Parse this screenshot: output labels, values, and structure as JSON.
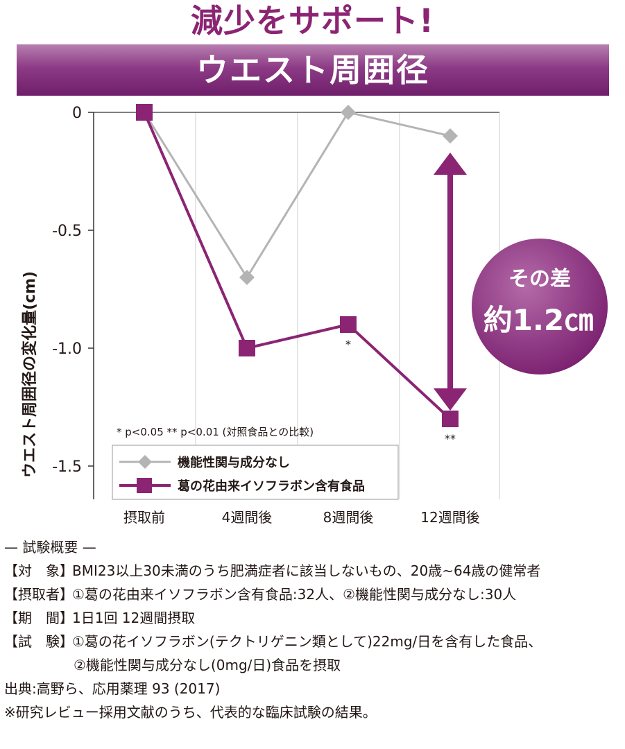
{
  "headline": "減少をサポート!",
  "banner": "ウエスト周囲径",
  "chart_data": {
    "type": "line",
    "title": "",
    "xlabel": "",
    "ylabel": "ウエスト周囲径の変化量(cm)",
    "categories": [
      "摂取前",
      "4週間後",
      "8週間後",
      "12週間後"
    ],
    "ylim": [
      -1.6,
      0
    ],
    "yticks": [
      0,
      -0.5,
      -1.0,
      -1.5
    ],
    "ytick_labels": [
      "0",
      "-0.5",
      "-1.0",
      "-1.5"
    ],
    "series": [
      {
        "name": "機能性関与成分なし",
        "values": [
          0,
          -0.7,
          0,
          -0.1
        ],
        "color": "#b4b4b4",
        "marker": "diamond"
      },
      {
        "name": "葛の花由来イソフラボン含有食品",
        "values": [
          0,
          -1.0,
          -0.9,
          -1.3
        ],
        "color": "#8b2473",
        "marker": "square"
      }
    ],
    "significance": [
      {
        "category_index": 2,
        "label": "*"
      },
      {
        "category_index": 3,
        "label": "**"
      }
    ],
    "footnote": "* p<0.05 ** p<0.01 (対照食品との比較)",
    "legend_position": "bottom-left",
    "difference_badge": {
      "line1": "その差",
      "line2": "約1.2㎝"
    },
    "colors": {
      "accent": "#8b2473",
      "control": "#b4b4b4",
      "axis": "#333333"
    }
  },
  "summary": {
    "heading": "— 試験概要 —",
    "rows": [
      {
        "label": "【対　象】",
        "text": "BMI23以上30未満のうち肥満症者に該当しないもの、20歳~64歳の健常者"
      },
      {
        "label": "【摂取者】",
        "text": "①葛の花由来イソフラボン含有食品:32人、②機能性関与成分なし:30人"
      },
      {
        "label": "【期　間】",
        "text": "1日1回 12週間摂取"
      },
      {
        "label": "【試　験】",
        "text": "①葛の花イソフラボン(テクトリゲニン類として)22mg/日を含有した食品、"
      }
    ],
    "continuation": "②機能性関与成分なし(0mg/日)食品を摂取",
    "source": "出典:高野ら、応用薬理 93 (2017)",
    "note": "※研究レビュー採用文献のうち、代表的な臨床試験の結果。"
  }
}
